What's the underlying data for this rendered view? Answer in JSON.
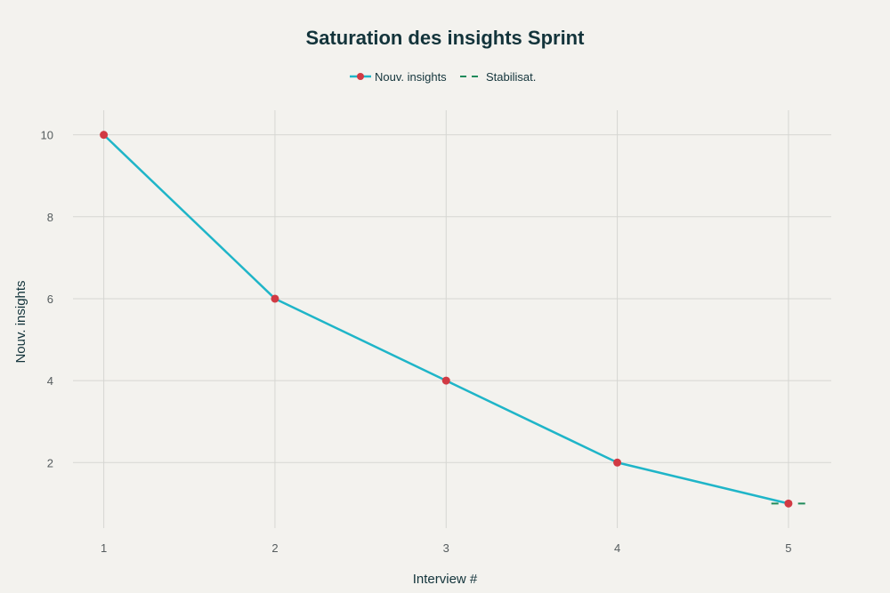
{
  "chart_data": {
    "type": "line",
    "title": "Saturation des insights Sprint",
    "xlabel": "Interview #",
    "ylabel": "Nouv. insights",
    "x": [
      1,
      2,
      3,
      4,
      5
    ],
    "x_tick_labels": [
      "1",
      "2",
      "3",
      "4",
      "5"
    ],
    "y_tick_values": [
      2,
      4,
      6,
      8,
      10
    ],
    "y_tick_labels": [
      "2",
      "4",
      "6",
      "8",
      "10"
    ],
    "xlim": [
      0.82,
      5.25
    ],
    "ylim": [
      0.4,
      10.6
    ],
    "grid": true,
    "legend_position": "top-center",
    "series": [
      {
        "name": "Nouv. insights",
        "style": "line-markers",
        "color": "#1fb5c8",
        "marker_color": "#d13a44",
        "x": [
          1,
          2,
          3,
          4,
          5
        ],
        "values": [
          10,
          6,
          4,
          2,
          1
        ]
      },
      {
        "name": "Stabilisat.",
        "style": "dashed",
        "color": "#1f8a5a",
        "x": [
          4.9,
          5.1
        ],
        "values": [
          1,
          1
        ]
      }
    ]
  },
  "colors": {
    "background": "#f3f2ee",
    "text": "#13343b",
    "tick": "#555c5e",
    "grid": "#d6d6d2"
  }
}
